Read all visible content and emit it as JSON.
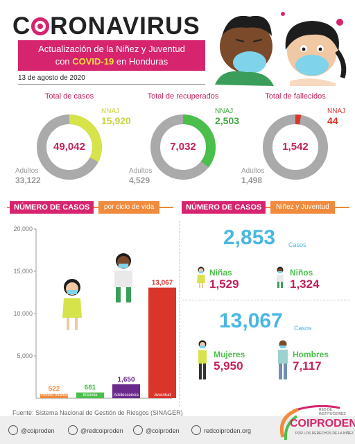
{
  "header": {
    "title_pre": "C",
    "title_post": "RONAVIRUS",
    "banner_line1": "Actualización de la Niñez y Juventud",
    "banner_line2_pre": "con ",
    "banner_line2_hl": "COVID-19",
    "banner_line2_post": " en Honduras",
    "date": "13 de agosto de 2020"
  },
  "colors": {
    "magenta": "#d6246e",
    "orange": "#f08a3c",
    "green": "#4bbf4b",
    "lime": "#d6e34a",
    "red": "#d9352b",
    "purple": "#6a2a8c",
    "blue": "#4ab7e2",
    "gray": "#aaaaaa"
  },
  "stats": [
    {
      "label": "Total de casos",
      "total": "49,042",
      "nnaj_label": "NNAJ",
      "nnaj": "15,920",
      "adult_label": "Adultos",
      "adults": "33,122",
      "fraction": 0.3246,
      "color": "#d6e34a",
      "nnaj_color": "#c7d33c"
    },
    {
      "label": "Total de recuperados",
      "total": "7,032",
      "nnaj_label": "NNAJ",
      "nnaj": "2,503",
      "adult_label": "Adultos",
      "adults": "4,529",
      "fraction": 0.3559,
      "color": "#4bbf4b",
      "nnaj_color": "#3fa83f"
    },
    {
      "label": "Total de fallecidos",
      "total": "1,542",
      "nnaj_label": "NNAJ",
      "nnaj": "44",
      "adult_label": "Adultos",
      "adults": "1,498",
      "fraction": 0.0285,
      "color": "#d9352b",
      "nnaj_color": "#d9352b"
    }
  ],
  "sections": {
    "left_title": "NÚMERO DE CASOS",
    "left_sub": "por ciclo de vida",
    "right_title": "NÚMERO DE CASOS",
    "right_sub": "Niñez y Juventud"
  },
  "chart_data": {
    "type": "bar",
    "categories": [
      "Primera Infancia",
      "Infancia",
      "Adolescencia",
      "Juventud"
    ],
    "values": [
      522,
      681,
      1650,
      13067
    ],
    "value_labels": [
      "522",
      "681",
      "1,650",
      "13,067"
    ],
    "colors": [
      "#f08a3c",
      "#4bbf4b",
      "#6a2a8c",
      "#d9352b"
    ],
    "ylim": [
      0,
      20000
    ],
    "yticks": [
      5000,
      10000,
      15000,
      20000
    ],
    "ytick_labels": [
      "5,000",
      "10,000",
      "15,000",
      "20,000"
    ]
  },
  "children": {
    "total": "2,853",
    "unit": "Casos",
    "girls_label": "Niñas",
    "girls": "1,529",
    "boys_label": "Niños",
    "boys": "1,324"
  },
  "youth": {
    "total": "13,067",
    "unit": "Casos",
    "women_label": "Mujeres",
    "women": "5,950",
    "men_label": "Hombres",
    "men": "7,117"
  },
  "source": "Fuente: Sistema Nacional de Gestión de Riesgos (SINAGER)",
  "footer": {
    "facebook": "@coiproden",
    "twitter": "@redcoiproden",
    "instagram": "@coiproden",
    "web": "redcoiproden.org",
    "logo_top": "RED DE INSTITUCIONES",
    "logo_name": "COIPRODEN",
    "logo_tag": "POR LOS DERECHOS DE LA NIÑEZ"
  }
}
